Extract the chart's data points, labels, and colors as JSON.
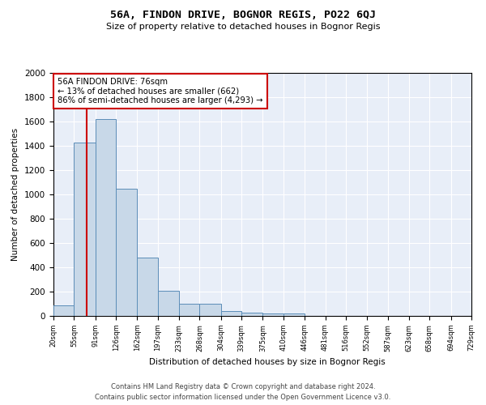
{
  "title": "56A, FINDON DRIVE, BOGNOR REGIS, PO22 6QJ",
  "subtitle": "Size of property relative to detached houses in Bognor Regis",
  "xlabel": "Distribution of detached houses by size in Bognor Regis",
  "ylabel": "Number of detached properties",
  "bar_color": "#c8d8e8",
  "bar_edge_color": "#5b8db8",
  "background_color": "#e8eef8",
  "grid_color": "#ffffff",
  "bins": [
    20,
    55,
    91,
    126,
    162,
    197,
    233,
    268,
    304,
    339,
    375,
    410,
    446,
    481,
    516,
    552,
    587,
    623,
    658,
    694,
    729
  ],
  "values": [
    85,
    1430,
    1620,
    1050,
    480,
    205,
    100,
    100,
    40,
    30,
    20,
    20,
    0,
    0,
    0,
    0,
    0,
    0,
    0,
    0
  ],
  "property_size": 76,
  "annotation_text": "56A FINDON DRIVE: 76sqm\n← 13% of detached houses are smaller (662)\n86% of semi-detached houses are larger (4,293) →",
  "vline_color": "#cc0000",
  "vline_x": 76,
  "ylim": [
    0,
    2000
  ],
  "yticks": [
    0,
    200,
    400,
    600,
    800,
    1000,
    1200,
    1400,
    1600,
    1800,
    2000
  ],
  "footer_text": "Contains HM Land Registry data © Crown copyright and database right 2024.\nContains public sector information licensed under the Open Government Licence v3.0.",
  "tick_labels": [
    "20sqm",
    "55sqm",
    "91sqm",
    "126sqm",
    "162sqm",
    "197sqm",
    "233sqm",
    "268sqm",
    "304sqm",
    "339sqm",
    "375sqm",
    "410sqm",
    "446sqm",
    "481sqm",
    "516sqm",
    "552sqm",
    "587sqm",
    "623sqm",
    "658sqm",
    "694sqm",
    "729sqm"
  ]
}
